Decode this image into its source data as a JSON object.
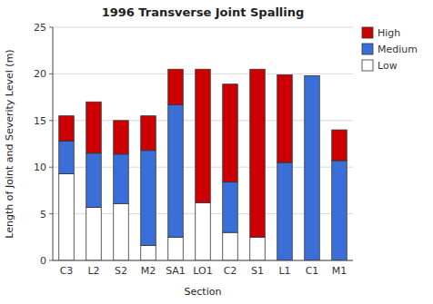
{
  "chart_data": {
    "type": "bar",
    "stacked": true,
    "title": "1996 Transverse Joint Spalling",
    "xlabel": "Section",
    "ylabel": "Length of Joint and Severity Level (m)",
    "categories": [
      "C3",
      "L2",
      "S2",
      "M2",
      "SA1",
      "LO1",
      "C2",
      "S1",
      "L1",
      "C1",
      "M1"
    ],
    "series": [
      {
        "name": "Low",
        "color": "#ffffff",
        "values": [
          9.3,
          5.7,
          6.1,
          1.6,
          2.5,
          6.2,
          3.0,
          2.5,
          0.0,
          0.0,
          0.0
        ]
      },
      {
        "name": "Medium",
        "color": "#3a6fda",
        "values": [
          3.5,
          5.8,
          5.3,
          10.2,
          14.2,
          0.0,
          5.4,
          0.0,
          10.5,
          19.8,
          10.7
        ]
      },
      {
        "name": "High",
        "color": "#cc0000",
        "values": [
          2.7,
          5.5,
          3.6,
          3.7,
          3.8,
          14.3,
          10.5,
          18.0,
          9.4,
          0.0,
          3.3
        ]
      }
    ],
    "ylim": [
      0,
      25
    ],
    "yticks": [
      0,
      5,
      10,
      15,
      20,
      25
    ],
    "grid": true,
    "legend": "upper right"
  }
}
